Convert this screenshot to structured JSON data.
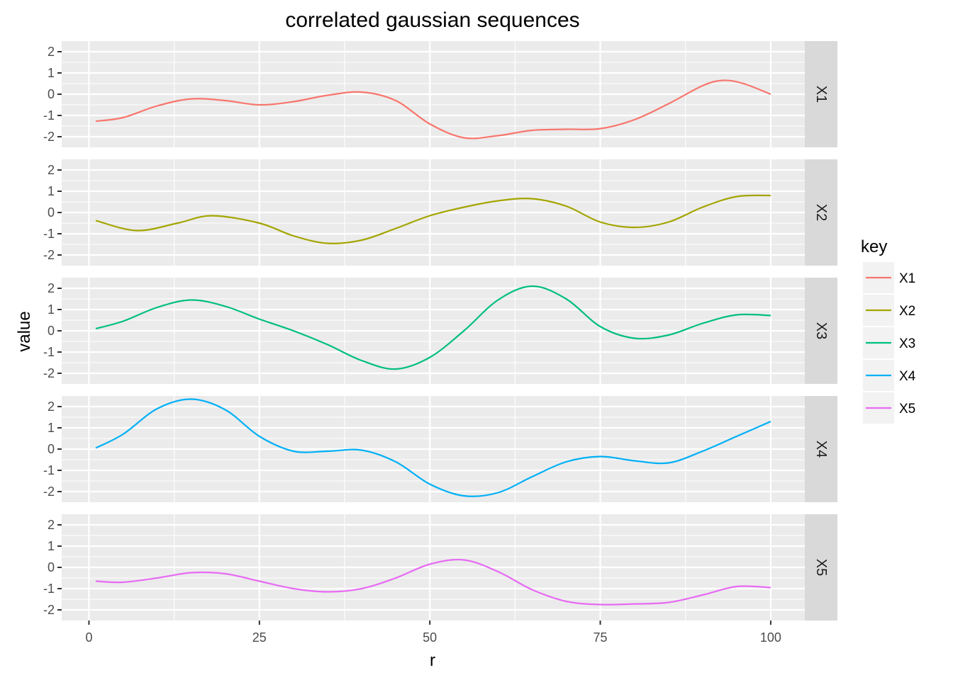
{
  "chart_data": {
    "type": "line",
    "title": "correlated gaussian sequences",
    "xlabel": "r",
    "ylabel": "value",
    "xlim": [
      -4,
      105
    ],
    "ylim": [
      -2.5,
      2.5
    ],
    "x_ticks": [
      0,
      25,
      50,
      75,
      100
    ],
    "y_ticks": [
      -2,
      -1,
      0,
      1,
      2
    ],
    "grid": true,
    "facet_layout": "rows",
    "legend": {
      "title": "key",
      "placement": "right"
    },
    "series": [
      {
        "name": "X1",
        "color": "#F8766D",
        "x": [
          1,
          5,
          10,
          15,
          20,
          25,
          30,
          35,
          40,
          45,
          50,
          55,
          60,
          65,
          70,
          75,
          80,
          85,
          90,
          93,
          96,
          100
        ],
        "y": [
          -1.27,
          -1.1,
          -0.55,
          -0.22,
          -0.3,
          -0.5,
          -0.35,
          -0.05,
          0.1,
          -0.3,
          -1.4,
          -2.05,
          -1.95,
          -1.7,
          -1.65,
          -1.62,
          -1.2,
          -0.45,
          0.4,
          0.65,
          0.5,
          0.0
        ]
      },
      {
        "name": "X2",
        "color": "#A3A500",
        "x": [
          1,
          7,
          13,
          18,
          25,
          30,
          35,
          40,
          45,
          50,
          55,
          60,
          65,
          70,
          75,
          80,
          85,
          90,
          95,
          100
        ],
        "y": [
          -0.38,
          -0.85,
          -0.5,
          -0.15,
          -0.5,
          -1.1,
          -1.45,
          -1.3,
          -0.75,
          -0.15,
          0.25,
          0.55,
          0.65,
          0.3,
          -0.45,
          -0.7,
          -0.45,
          0.25,
          0.75,
          0.8
        ]
      },
      {
        "name": "X3",
        "color": "#00BF7D",
        "x": [
          1,
          5,
          10,
          15,
          20,
          25,
          30,
          35,
          40,
          45,
          50,
          55,
          60,
          65,
          70,
          75,
          80,
          85,
          90,
          95,
          100
        ],
        "y": [
          0.1,
          0.45,
          1.1,
          1.45,
          1.15,
          0.55,
          0.0,
          -0.65,
          -1.4,
          -1.8,
          -1.25,
          0.0,
          1.45,
          2.1,
          1.5,
          0.2,
          -0.35,
          -0.2,
          0.35,
          0.75,
          0.72
        ]
      },
      {
        "name": "X4",
        "color": "#00B0F6",
        "x": [
          1,
          5,
          10,
          15,
          20,
          25,
          30,
          35,
          40,
          45,
          50,
          55,
          60,
          65,
          70,
          75,
          80,
          85,
          90,
          95,
          100
        ],
        "y": [
          0.05,
          0.7,
          1.9,
          2.35,
          1.85,
          0.6,
          -0.1,
          -0.1,
          -0.05,
          -0.6,
          -1.65,
          -2.2,
          -2.05,
          -1.3,
          -0.6,
          -0.35,
          -0.55,
          -0.65,
          -0.1,
          0.6,
          1.3
        ]
      },
      {
        "name": "X5",
        "color": "#E76BF3",
        "x": [
          1,
          5,
          10,
          15,
          20,
          25,
          30,
          35,
          40,
          45,
          50,
          55,
          60,
          65,
          70,
          75,
          80,
          85,
          90,
          95,
          100
        ],
        "y": [
          -0.65,
          -0.7,
          -0.5,
          -0.25,
          -0.3,
          -0.65,
          -1.0,
          -1.15,
          -1.0,
          -0.5,
          0.15,
          0.35,
          -0.2,
          -1.05,
          -1.6,
          -1.75,
          -1.72,
          -1.65,
          -1.3,
          -0.9,
          -0.95
        ]
      }
    ]
  }
}
